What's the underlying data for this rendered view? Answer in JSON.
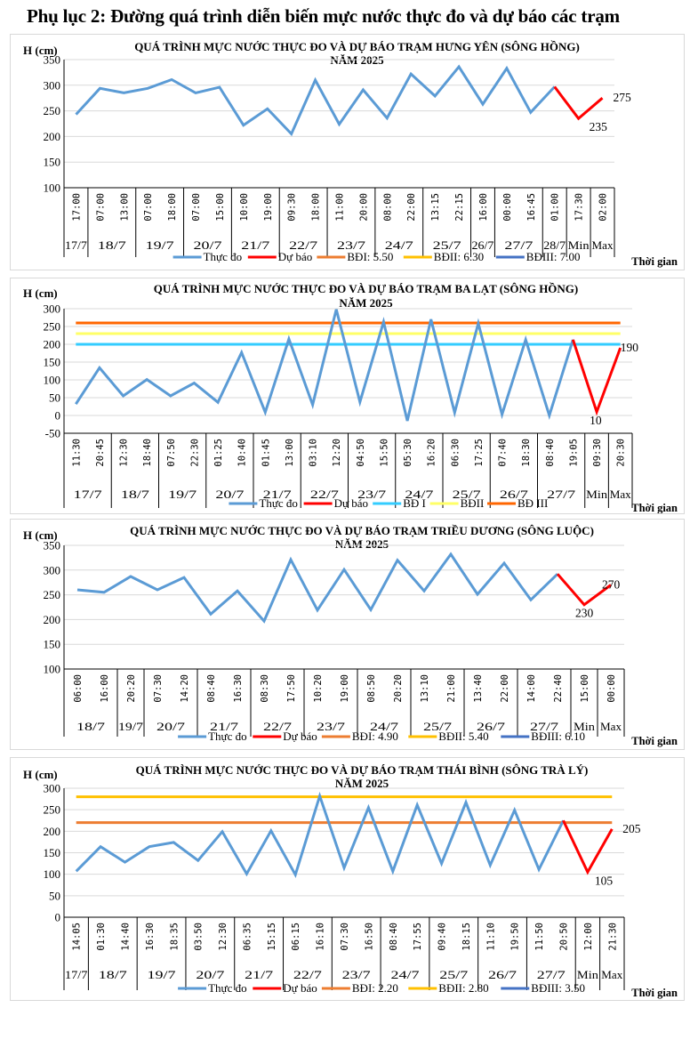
{
  "page": {
    "title": "Phụ lục 2: Đường quá trình diễn biến mực nước thực đo và dự báo các trạm"
  },
  "chart_data": [
    {
      "type": "line",
      "title": "QUÁ TRÌNH MỰC NƯỚC THỰC ĐO VÀ DỰ BÁO TRẠM HƯNG YÊN  (SÔNG HỒNG)",
      "subtitle": "NĂM 2025",
      "ylabel": "H (cm)",
      "xlabel": "Thời gian",
      "ylim": [
        100,
        350
      ],
      "yticks": [
        100,
        150,
        200,
        250,
        300,
        350
      ],
      "grid": true,
      "legend_position": "bottom",
      "times": [
        "17:00",
        "07:00",
        "13:00",
        "07:00",
        "18:00",
        "07:00",
        "15:00",
        "10:00",
        "19:00",
        "09:30",
        "18:00",
        "11:00",
        "20:00",
        "08:00",
        "22:00",
        "13:15",
        "22:15",
        "16:00",
        "00:00",
        "16:45",
        "01:00",
        "17:30",
        "02:00"
      ],
      "date_groups": [
        {
          "label": "17/7",
          "span": 1
        },
        {
          "label": "18/7",
          "span": 2
        },
        {
          "label": "19/7",
          "span": 2
        },
        {
          "label": "20/7",
          "span": 2
        },
        {
          "label": "21/7",
          "span": 2
        },
        {
          "label": "22/7",
          "span": 2
        },
        {
          "label": "23/7",
          "span": 2
        },
        {
          "label": "24/7",
          "span": 2
        },
        {
          "label": "25/7",
          "span": 2
        },
        {
          "label": "26/7",
          "span": 1
        },
        {
          "label": "27/7",
          "span": 2
        },
        {
          "label": "28/7",
          "span": 1
        },
        {
          "label": "Min",
          "span": 1
        },
        {
          "label": "Max",
          "span": 1
        }
      ],
      "series": [
        {
          "name": "Thực đo",
          "color": "#5b9bd5",
          "start": 0,
          "values": [
            243,
            294,
            285,
            294,
            311,
            285,
            296,
            222,
            254,
            205,
            310,
            224,
            291,
            236,
            322,
            279,
            336,
            263,
            333,
            247,
            297
          ]
        },
        {
          "name": "Dự báo",
          "color": "#ff0000",
          "start": 20,
          "values": [
            297,
            235,
            275
          ]
        }
      ],
      "thresholds": [],
      "legend": [
        {
          "label": "Thực đo",
          "color": "#5b9bd5"
        },
        {
          "label": "Dự báo",
          "color": "#ff0000"
        },
        {
          "label": "BĐI: 5.50",
          "color": "#ed7d31"
        },
        {
          "label": "BĐII: 6.30",
          "color": "#ffc000"
        },
        {
          "label": "BĐIII: 7.00",
          "color": "#4472c4"
        }
      ],
      "annotations": [
        {
          "index": 21,
          "text": "235",
          "value": 235
        },
        {
          "index": 22,
          "text": "275",
          "value": 275
        }
      ]
    },
    {
      "type": "line",
      "title": "QUÁ TRÌNH MỰC NƯỚC THỰC ĐO VÀ DỰ BÁO TRẠM BA LẠT (SÔNG HỒNG)",
      "subtitle": "NĂM 2025",
      "ylabel": "H (cm)",
      "xlabel": "Thời gian",
      "ylim": [
        -50,
        300
      ],
      "yticks": [
        -50,
        0,
        50,
        100,
        150,
        200,
        250,
        300
      ],
      "grid": true,
      "legend_position": "bottom",
      "times": [
        "11:30",
        "20:45",
        "12:30",
        "18:40",
        "07:50",
        "22:30",
        "01:25",
        "10:40",
        "01:45",
        "13:00",
        "03:10",
        "12:20",
        "04:50",
        "15:50",
        "05:30",
        "16:20",
        "06:30",
        "17:25",
        "07:40",
        "18:30",
        "08:40",
        "19:05",
        "09:30",
        "20:30"
      ],
      "date_groups": [
        {
          "label": "17/7",
          "span": 2
        },
        {
          "label": "18/7",
          "span": 2
        },
        {
          "label": "19/7",
          "span": 2
        },
        {
          "label": "20/7",
          "span": 2
        },
        {
          "label": "21/7",
          "span": 2
        },
        {
          "label": "22/7",
          "span": 2
        },
        {
          "label": "23/7",
          "span": 2
        },
        {
          "label": "24/7",
          "span": 2
        },
        {
          "label": "25/7",
          "span": 2
        },
        {
          "label": "26/7",
          "span": 2
        },
        {
          "label": "27/7",
          "span": 2
        },
        {
          "label": "Min",
          "span": 1
        },
        {
          "label": "Max",
          "span": 1
        }
      ],
      "series": [
        {
          "name": "Thực đo",
          "color": "#5b9bd5",
          "start": 0,
          "values": [
            32,
            134,
            55,
            101,
            55,
            91,
            37,
            177,
            9,
            215,
            30,
            298,
            38,
            263,
            -15,
            270,
            8,
            259,
            3,
            213,
            0,
            213
          ]
        },
        {
          "name": "Dự báo",
          "color": "#ff0000",
          "start": 21,
          "values": [
            213,
            10,
            190
          ]
        }
      ],
      "thresholds": [
        {
          "name": "BĐ I",
          "value": 200,
          "color": "#33ccff"
        },
        {
          "name": "BĐII",
          "value": 230,
          "color": "#ffff66"
        },
        {
          "name": "BĐ III",
          "value": 260,
          "color": "#ff6600"
        }
      ],
      "legend": [
        {
          "label": "Thực đo",
          "color": "#5b9bd5"
        },
        {
          "label": "Dự báo",
          "color": "#ff0000"
        },
        {
          "label": "BĐ I",
          "color": "#33ccff"
        },
        {
          "label": "BĐII",
          "color": "#ffff66"
        },
        {
          "label": "BĐ III",
          "color": "#ff6600"
        }
      ],
      "annotations": [
        {
          "index": 22,
          "text": "10",
          "value": 10
        },
        {
          "index": 23,
          "text": "190",
          "value": 190
        }
      ]
    },
    {
      "type": "line",
      "title": "QUÁ TRÌNH MỰC NƯỚC THỰC ĐO VÀ DỰ BÁO TRẠM TRIỀU DƯƠNG  (SÔNG LUỘC)",
      "subtitle": "NĂM 2025",
      "ylabel": "H (cm)",
      "xlabel": "Thời gian",
      "ylim": [
        100,
        350
      ],
      "yticks": [
        100,
        150,
        200,
        250,
        300,
        350
      ],
      "grid": true,
      "legend_position": "bottom",
      "times": [
        "06:00",
        "16:00",
        "20:20",
        "07:30",
        "14:20",
        "08:40",
        "16:30",
        "08:30",
        "17:50",
        "10:20",
        "19:00",
        "08:50",
        "20:20",
        "13:10",
        "21:00",
        "13:40",
        "22:00",
        "14:00",
        "22:40",
        "15:00",
        "00:00"
      ],
      "date_groups": [
        {
          "label": "18/7",
          "span": 2
        },
        {
          "label": "19/7",
          "span": 1
        },
        {
          "label": "20/7",
          "span": 2
        },
        {
          "label": "21/7",
          "span": 2
        },
        {
          "label": "22/7",
          "span": 2
        },
        {
          "label": "23/7",
          "span": 2
        },
        {
          "label": "24/7",
          "span": 2
        },
        {
          "label": "25/7",
          "span": 2
        },
        {
          "label": "26/7",
          "span": 2
        },
        {
          "label": "27/7",
          "span": 2
        },
        {
          "label": "Min",
          "span": 1
        },
        {
          "label": "Max",
          "span": 1
        }
      ],
      "series": [
        {
          "name": "Thực đo",
          "color": "#5b9bd5",
          "start": 0,
          "values": [
            260,
            255,
            287,
            260,
            285,
            211,
            258,
            197,
            321,
            219,
            301,
            220,
            320,
            258,
            332,
            251,
            314,
            240,
            292
          ]
        },
        {
          "name": "Dự báo",
          "color": "#ff0000",
          "start": 18,
          "values": [
            292,
            230,
            270
          ]
        }
      ],
      "thresholds": [],
      "legend": [
        {
          "label": "Thực đo",
          "color": "#5b9bd5"
        },
        {
          "label": "Dự báo",
          "color": "#ff0000"
        },
        {
          "label": "BĐI: 4.90",
          "color": "#ed7d31"
        },
        {
          "label": "BĐII: 5.40",
          "color": "#ffc000"
        },
        {
          "label": "BĐIII: 6.10",
          "color": "#4472c4"
        }
      ],
      "annotations": [
        {
          "index": 19,
          "text": "230",
          "value": 230
        },
        {
          "index": 20,
          "text": "270",
          "value": 270
        }
      ]
    },
    {
      "type": "line",
      "title": "QUÁ TRÌNH MỰC NƯỚC THỰC ĐO VÀ DỰ BÁO TRẠM THÁI BÌNH (SÔNG TRÀ LÝ)",
      "subtitle": "NĂM 2025",
      "ylabel": "H (cm)",
      "xlabel": "Thời gian",
      "ylim": [
        0,
        300
      ],
      "yticks": [
        0,
        50,
        100,
        150,
        200,
        250,
        300
      ],
      "grid": true,
      "legend_position": "bottom",
      "times": [
        "14:05",
        "01:30",
        "14:40",
        "16:30",
        "18:35",
        "03:50",
        "12:30",
        "06:35",
        "15:15",
        "06:15",
        "16:10",
        "07:30",
        "16:50",
        "08:40",
        "17:55",
        "09:40",
        "18:15",
        "11:10",
        "19:50",
        "11:50",
        "20:50",
        "12:00",
        "21:30"
      ],
      "date_groups": [
        {
          "label": "17/7",
          "span": 1
        },
        {
          "label": "18/7",
          "span": 2
        },
        {
          "label": "19/7",
          "span": 2
        },
        {
          "label": "20/7",
          "span": 2
        },
        {
          "label": "21/7",
          "span": 2
        },
        {
          "label": "22/7",
          "span": 2
        },
        {
          "label": "23/7",
          "span": 2
        },
        {
          "label": "24/7",
          "span": 2
        },
        {
          "label": "25/7",
          "span": 2
        },
        {
          "label": "26/7",
          "span": 2
        },
        {
          "label": "27/7",
          "span": 2
        },
        {
          "label": "Min",
          "span": 1
        },
        {
          "label": "Max",
          "span": 1
        }
      ],
      "series": [
        {
          "name": "Thực đo",
          "color": "#5b9bd5",
          "start": 0,
          "values": [
            107,
            164,
            128,
            164,
            174,
            132,
            199,
            101,
            201,
            99,
            282,
            115,
            255,
            107,
            261,
            125,
            267,
            121,
            249,
            111,
            225
          ]
        },
        {
          "name": "Dự báo",
          "color": "#ff0000",
          "start": 20,
          "values": [
            225,
            105,
            205
          ]
        }
      ],
      "thresholds": [
        {
          "name": "BĐI: 2.20",
          "value": 220,
          "color": "#ed7d31"
        },
        {
          "name": "BĐII: 2.80",
          "value": 280,
          "color": "#ffc000"
        }
      ],
      "legend": [
        {
          "label": "Thực đo",
          "color": "#5b9bd5"
        },
        {
          "label": "Dự báo",
          "color": "#ff0000"
        },
        {
          "label": "BĐI: 2.20",
          "color": "#ed7d31"
        },
        {
          "label": "BĐII: 2.80",
          "color": "#ffc000"
        },
        {
          "label": "BĐIII: 3.50",
          "color": "#4472c4"
        }
      ],
      "annotations": [
        {
          "index": 21,
          "text": "105",
          "value": 105
        },
        {
          "index": 22,
          "text": "205",
          "value": 205
        }
      ]
    }
  ]
}
